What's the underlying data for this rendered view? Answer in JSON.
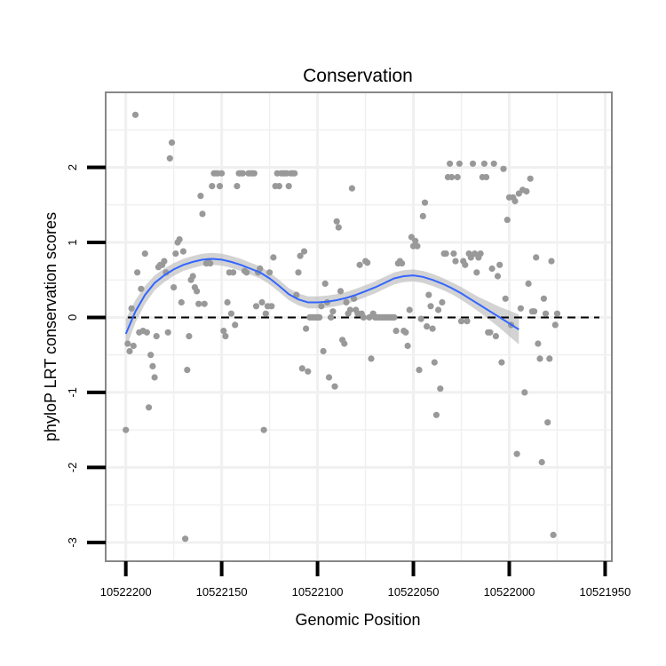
{
  "chart_data": {
    "type": "scatter",
    "title": "Conservation",
    "xlabel": "Genomic Position",
    "ylabel": "phyloP LRT conservation scores",
    "x_reversed": true,
    "xlim": [
      10522210.5,
      10521946.5
    ],
    "ylim": [
      -3.25,
      3.0
    ],
    "x_ticks": [
      10522200,
      10522150,
      10522100,
      10522050,
      10522000,
      10521950
    ],
    "x_tick_labels": [
      "10522200",
      "10522150",
      "10522100",
      "10522050",
      "10522000",
      "10521950"
    ],
    "y_ticks": [
      -3,
      -2,
      -1,
      0,
      1,
      2
    ],
    "y_tick_labels": [
      "-3",
      "-2",
      "-1",
      "0",
      "1",
      "2"
    ],
    "reference_line": {
      "y": 0,
      "style": "dashed",
      "color": "#000000"
    },
    "grid": true,
    "colors": {
      "points": "#999999",
      "smooth_line": "#3366ff",
      "confidence_band": "#bbbbbb",
      "panel_border": "#888888",
      "grid": "#f0f0f0"
    },
    "points": [
      [
        10522200,
        -1.5
      ],
      [
        10522199,
        -0.35
      ],
      [
        10522198,
        -0.45
      ],
      [
        10522197,
        0.12
      ],
      [
        10522196,
        -0.38
      ],
      [
        10522195,
        2.7
      ],
      [
        10522194,
        0.6
      ],
      [
        10522193,
        -0.2
      ],
      [
        10522192,
        0.38
      ],
      [
        10522191,
        -0.18
      ],
      [
        10522190,
        0.85
      ],
      [
        10522189,
        -0.2
      ],
      [
        10522188,
        -1.2
      ],
      [
        10522187,
        -0.5
      ],
      [
        10522186,
        -0.65
      ],
      [
        10522185,
        -0.8
      ],
      [
        10522184,
        -0.25
      ],
      [
        10522183,
        0.67
      ],
      [
        10522182,
        0.7
      ],
      [
        10522181,
        0.7
      ],
      [
        10522180,
        0.75
      ],
      [
        10522179,
        0.6
      ],
      [
        10522178,
        -0.2
      ],
      [
        10522177,
        2.12
      ],
      [
        10522176,
        2.33
      ],
      [
        10522175,
        0.4
      ],
      [
        10522174,
        0.85
      ],
      [
        10522173,
        1.0
      ],
      [
        10522172,
        1.04
      ],
      [
        10522171,
        0.2
      ],
      [
        10522170,
        0.88
      ],
      [
        10522169,
        -2.95
      ],
      [
        10522168,
        -0.7
      ],
      [
        10522167,
        -0.25
      ],
      [
        10522166,
        0.5
      ],
      [
        10522165,
        0.55
      ],
      [
        10522164,
        0.4
      ],
      [
        10522163,
        0.35
      ],
      [
        10522162,
        0.18
      ],
      [
        10522161,
        1.62
      ],
      [
        10522160,
        1.38
      ],
      [
        10522159,
        0.18
      ],
      [
        10522158,
        0.72
      ],
      [
        10522157,
        0.75
      ],
      [
        10522156,
        0.72
      ],
      [
        10522155,
        1.75
      ],
      [
        10522154,
        1.92
      ],
      [
        10522153,
        1.92
      ],
      [
        10522152,
        1.92
      ],
      [
        10522151,
        1.75
      ],
      [
        10522150,
        1.92
      ],
      [
        10522149,
        -0.18
      ],
      [
        10522148,
        -0.25
      ],
      [
        10522147,
        0.2
      ],
      [
        10522146,
        0.6
      ],
      [
        10522145,
        0.05
      ],
      [
        10522144,
        0.6
      ],
      [
        10522143,
        -0.1
      ],
      [
        10522142,
        1.75
      ],
      [
        10522141,
        1.92
      ],
      [
        10522140,
        1.92
      ],
      [
        10522139,
        1.92
      ],
      [
        10522138,
        0.62
      ],
      [
        10522137,
        0.6
      ],
      [
        10522136,
        1.92
      ],
      [
        10522135,
        1.92
      ],
      [
        10522134,
        1.92
      ],
      [
        10522133,
        1.92
      ],
      [
        10522132,
        0.15
      ],
      [
        10522131,
        0.6
      ],
      [
        10522130,
        0.65
      ],
      [
        10522129,
        0.2
      ],
      [
        10522128,
        -1.5
      ],
      [
        10522127,
        0.05
      ],
      [
        10522126,
        0.15
      ],
      [
        10522125,
        0.6
      ],
      [
        10522124,
        0.15
      ],
      [
        10522123,
        0.8
      ],
      [
        10522122,
        1.75
      ],
      [
        10522121,
        1.92
      ],
      [
        10522120,
        1.75
      ],
      [
        10522119,
        1.92
      ],
      [
        10522118,
        1.92
      ],
      [
        10522117,
        1.92
      ],
      [
        10522116,
        1.92
      ],
      [
        10522115,
        1.75
      ],
      [
        10522114,
        1.92
      ],
      [
        10522113,
        1.92
      ],
      [
        10522112,
        1.92
      ],
      [
        10522111,
        0.3
      ],
      [
        10522110,
        0.6
      ],
      [
        10522109,
        0.82
      ],
      [
        10522108,
        -0.68
      ],
      [
        10522107,
        0.88
      ],
      [
        10522106,
        -0.15
      ],
      [
        10522105,
        -0.72
      ],
      [
        10522104,
        0.0
      ],
      [
        10522103,
        0.0
      ],
      [
        10522102,
        0.0
      ],
      [
        10522101,
        0.0
      ],
      [
        10522100,
        0.0
      ],
      [
        10522099,
        0.0
      ],
      [
        10522098,
        0.15
      ],
      [
        10522097,
        -0.45
      ],
      [
        10522096,
        0.45
      ],
      [
        10522095,
        0.2
      ],
      [
        10522094,
        -0.8
      ],
      [
        10522093,
        0.0
      ],
      [
        10522092,
        0.08
      ],
      [
        10522091,
        -0.92
      ],
      [
        10522090,
        1.28
      ],
      [
        10522089,
        1.2
      ],
      [
        10522088,
        0.35
      ],
      [
        10522087,
        -0.3
      ],
      [
        10522086,
        -0.35
      ],
      [
        10522085,
        0.2
      ],
      [
        10522084,
        0.05
      ],
      [
        10522083,
        0.1
      ],
      [
        10522082,
        1.72
      ],
      [
        10522081,
        0.25
      ],
      [
        10522080,
        0.1
      ],
      [
        10522079,
        0.05
      ],
      [
        10522078,
        0.7
      ],
      [
        10522077,
        0.05
      ],
      [
        10522076,
        0.0
      ],
      [
        10522075,
        0.75
      ],
      [
        10522074,
        0.73
      ],
      [
        10522073,
        0.0
      ],
      [
        10522072,
        -0.55
      ],
      [
        10522071,
        0.05
      ],
      [
        10522070,
        0.0
      ],
      [
        10522069,
        0.0
      ],
      [
        10522068,
        0.0
      ],
      [
        10522067,
        0.0
      ],
      [
        10522066,
        0.0
      ],
      [
        10522065,
        0.0
      ],
      [
        10522064,
        0.0
      ],
      [
        10522063,
        0.0
      ],
      [
        10522062,
        0.0
      ],
      [
        10522061,
        0.0
      ],
      [
        10522060,
        0.0
      ],
      [
        10522059,
        -0.18
      ],
      [
        10522058,
        0.72
      ],
      [
        10522057,
        0.75
      ],
      [
        10522056,
        0.72
      ],
      [
        10522055,
        -0.18
      ],
      [
        10522054,
        -0.2
      ],
      [
        10522053,
        -0.38
      ],
      [
        10522052,
        0.1
      ],
      [
        10522051,
        1.07
      ],
      [
        10522050,
        0.95
      ],
      [
        10522049,
        1.02
      ],
      [
        10522048,
        0.95
      ],
      [
        10522047,
        -0.7
      ],
      [
        10522046,
        -0.02
      ],
      [
        10522045,
        1.35
      ],
      [
        10522044,
        1.53
      ],
      [
        10522043,
        -0.12
      ],
      [
        10522042,
        0.3
      ],
      [
        10522041,
        0.15
      ],
      [
        10522040,
        -0.15
      ],
      [
        10522039,
        -0.6
      ],
      [
        10522038,
        -1.3
      ],
      [
        10522037,
        0.1
      ],
      [
        10522036,
        -0.95
      ],
      [
        10522035,
        0.2
      ],
      [
        10522034,
        0.85
      ],
      [
        10522033,
        0.85
      ],
      [
        10522032,
        1.87
      ],
      [
        10522031,
        2.05
      ],
      [
        10522030,
        1.87
      ],
      [
        10522029,
        0.85
      ],
      [
        10522028,
        0.75
      ],
      [
        10522027,
        1.87
      ],
      [
        10522026,
        2.05
      ],
      [
        10522025,
        -0.05
      ],
      [
        10522024,
        0.75
      ],
      [
        10522023,
        0.7
      ],
      [
        10522022,
        -0.05
      ],
      [
        10522021,
        0.85
      ],
      [
        10522020,
        0.8
      ],
      [
        10522019,
        2.05
      ],
      [
        10522018,
        0.85
      ],
      [
        10522017,
        0.6
      ],
      [
        10522016,
        0.8
      ],
      [
        10522015,
        0.85
      ],
      [
        10522014,
        1.87
      ],
      [
        10522013,
        2.05
      ],
      [
        10522012,
        1.87
      ],
      [
        10522011,
        -0.2
      ],
      [
        10522010,
        -0.2
      ],
      [
        10522009,
        0.65
      ],
      [
        10522008,
        2.05
      ],
      [
        10522007,
        -0.25
      ],
      [
        10522006,
        0.55
      ],
      [
        10522005,
        0.7
      ],
      [
        10522004,
        -0.6
      ],
      [
        10522003,
        1.98
      ],
      [
        10522002,
        0.25
      ],
      [
        10522001,
        1.3
      ],
      [
        10522000,
        1.6
      ],
      [
        10521999,
        -0.1
      ],
      [
        10521998,
        1.6
      ],
      [
        10521997,
        1.55
      ],
      [
        10521996,
        -1.82
      ],
      [
        10521995,
        1.65
      ],
      [
        10521994,
        0.12
      ],
      [
        10521993,
        1.7
      ],
      [
        10521992,
        -1.0
      ],
      [
        10521991,
        1.68
      ],
      [
        10521990,
        0.45
      ],
      [
        10521989,
        1.85
      ],
      [
        10521988,
        0.08
      ],
      [
        10521987,
        0.08
      ],
      [
        10521986,
        0.8
      ],
      [
        10521985,
        -0.35
      ],
      [
        10521984,
        -0.55
      ],
      [
        10521983,
        -1.93
      ],
      [
        10521982,
        0.25
      ],
      [
        10521981,
        0.05
      ],
      [
        10521980,
        -1.4
      ],
      [
        10521979,
        -0.55
      ],
      [
        10521978,
        0.75
      ],
      [
        10521977,
        -2.9
      ],
      [
        10521976,
        -0.1
      ],
      [
        10521975,
        0.05
      ]
    ],
    "smooth_fit": [
      [
        10522200,
        -0.22
      ],
      [
        10522195,
        0.08
      ],
      [
        10522190,
        0.3
      ],
      [
        10522185,
        0.46
      ],
      [
        10522180,
        0.56
      ],
      [
        10522175,
        0.64
      ],
      [
        10522170,
        0.7
      ],
      [
        10522165,
        0.74
      ],
      [
        10522160,
        0.77
      ],
      [
        10522155,
        0.78
      ],
      [
        10522150,
        0.77
      ],
      [
        10522145,
        0.74
      ],
      [
        10522140,
        0.7
      ],
      [
        10522135,
        0.65
      ],
      [
        10522130,
        0.6
      ],
      [
        10522125,
        0.52
      ],
      [
        10522120,
        0.42
      ],
      [
        10522115,
        0.31
      ],
      [
        10522110,
        0.24
      ],
      [
        10522105,
        0.2
      ],
      [
        10522100,
        0.2
      ],
      [
        10522095,
        0.21
      ],
      [
        10522090,
        0.23
      ],
      [
        10522085,
        0.26
      ],
      [
        10522080,
        0.3
      ],
      [
        10522075,
        0.35
      ],
      [
        10522070,
        0.4
      ],
      [
        10522065,
        0.46
      ],
      [
        10522060,
        0.52
      ],
      [
        10522055,
        0.55
      ],
      [
        10522050,
        0.56
      ],
      [
        10522045,
        0.54
      ],
      [
        10522040,
        0.5
      ],
      [
        10522035,
        0.45
      ],
      [
        10522030,
        0.39
      ],
      [
        10522025,
        0.32
      ],
      [
        10522020,
        0.24
      ],
      [
        10522015,
        0.16
      ],
      [
        10522010,
        0.08
      ],
      [
        10522005,
        0.0
      ],
      [
        10522000,
        -0.08
      ],
      [
        10521995,
        -0.16
      ]
    ],
    "band_halfwidth": [
      0.2,
      0.15,
      0.12,
      0.1,
      0.09,
      0.085,
      0.08,
      0.08,
      0.08,
      0.08,
      0.08,
      0.08,
      0.08,
      0.08,
      0.08,
      0.08,
      0.08,
      0.08,
      0.08,
      0.08,
      0.08,
      0.08,
      0.08,
      0.08,
      0.08,
      0.08,
      0.08,
      0.08,
      0.08,
      0.08,
      0.08,
      0.08,
      0.08,
      0.08,
      0.08,
      0.085,
      0.09,
      0.1,
      0.12,
      0.14,
      0.17,
      0.2
    ]
  }
}
